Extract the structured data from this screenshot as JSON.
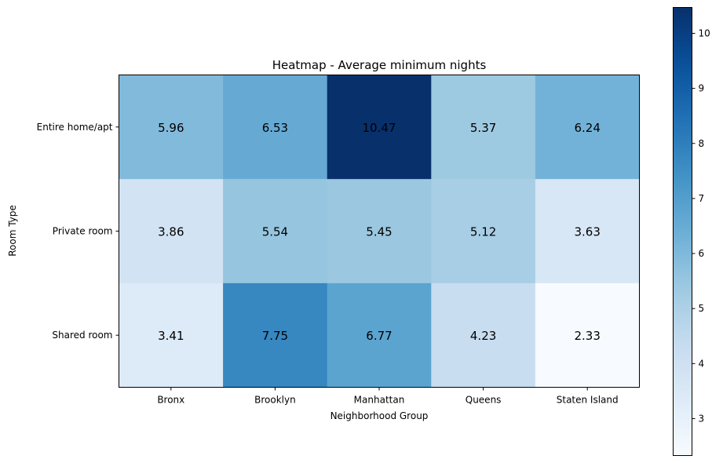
{
  "chart_data": {
    "type": "heatmap",
    "title": "Heatmap - Average minimum nights",
    "xlabel": "Neighborhood Group",
    "ylabel": "Room Type",
    "x_categories": [
      "Bronx",
      "Brooklyn",
      "Manhattan",
      "Queens",
      "Staten Island"
    ],
    "y_categories": [
      "Entire home/apt",
      "Private room",
      "Shared room"
    ],
    "values": [
      [
        5.96,
        6.53,
        10.47,
        5.37,
        6.24
      ],
      [
        3.86,
        5.54,
        5.45,
        5.12,
        3.63
      ],
      [
        3.41,
        7.75,
        6.77,
        4.23,
        2.33
      ]
    ],
    "value_labels": [
      [
        "5.96",
        "6.53",
        "10.47",
        "5.37",
        "6.24"
      ],
      [
        "3.86",
        "5.54",
        "5.45",
        "5.12",
        "3.63"
      ],
      [
        "3.41",
        "7.75",
        "6.77",
        "4.23",
        "2.33"
      ]
    ],
    "colormap": "Blues",
    "colorbar": {
      "vmin": 2.33,
      "vmax": 10.47,
      "ticks": [
        3,
        4,
        5,
        6,
        7,
        8,
        9,
        10
      ],
      "tick_labels": [
        "3",
        "4",
        "5",
        "6",
        "7",
        "8",
        "9",
        "10"
      ]
    },
    "grid": false
  }
}
